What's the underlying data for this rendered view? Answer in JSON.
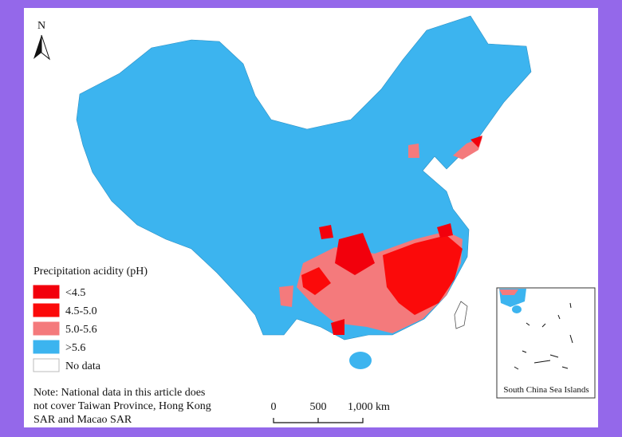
{
  "north_label": "N",
  "legend": {
    "title": "Precipitation acidity (pH)",
    "items": [
      {
        "label": "<4.5",
        "color": "#f2000c"
      },
      {
        "label": "4.5-5.0",
        "color": "#fb0a0a"
      },
      {
        "label": "5.0-5.6",
        "color": "#f47a7c"
      },
      {
        "label": ">5.6",
        "color": "#3cb4ef"
      },
      {
        "label": "No data",
        "color": "#ffffff"
      }
    ]
  },
  "note": [
    "Note: National data in this article does",
    "not cover Taiwan Province, Hong Kong",
    "SAR and Macao SAR"
  ],
  "scale_bar": {
    "labels": [
      "0",
      "500",
      "1,000 km"
    ]
  },
  "inset_label": "South China Sea Islands"
}
